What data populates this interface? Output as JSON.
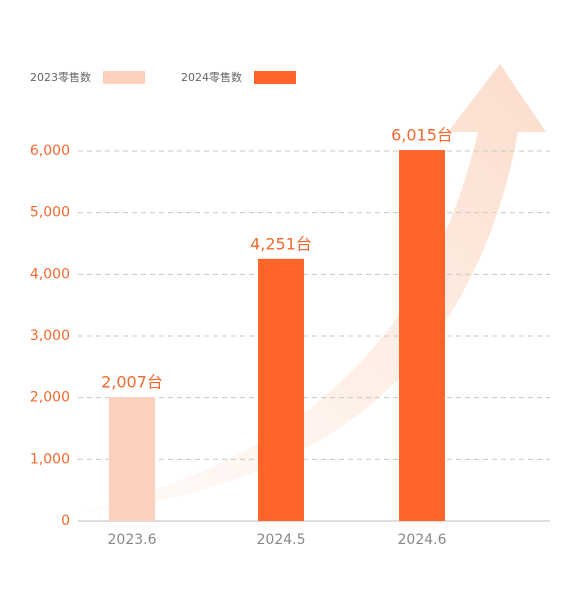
{
  "chart_data": {
    "type": "bar",
    "categories": [
      "2023.6",
      "2024.5",
      "2024.6"
    ],
    "series": [
      {
        "name": "2023零售数",
        "color": "#fdd0bb",
        "values": [
          2007,
          null,
          null
        ],
        "value_labels": [
          "2,007台",
          null,
          null
        ]
      },
      {
        "name": "2024零售数",
        "color": "#ff6428",
        "values": [
          null,
          4251,
          6015
        ],
        "value_labels": [
          null,
          "4,251台",
          "6,015台"
        ]
      }
    ],
    "ylim": [
      0,
      6000
    ],
    "yticks": [
      0,
      {
        "value": 1000,
        "label": "1,000"
      },
      {
        "value": 2000,
        "label": "2,000"
      },
      {
        "value": 3000,
        "label": "3,000"
      },
      {
        "value": 4000,
        "label": "4,000"
      },
      {
        "value": 5000,
        "label": "5,000"
      },
      {
        "value": 6000,
        "label": "6,000"
      }
    ],
    "grid": true,
    "legend": "top-left"
  }
}
